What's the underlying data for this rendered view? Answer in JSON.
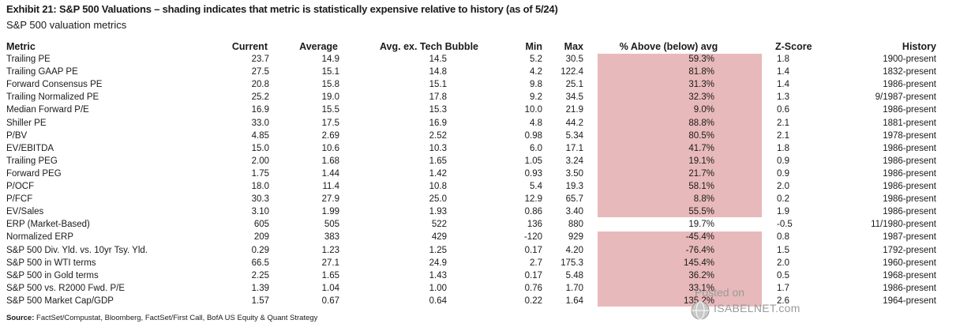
{
  "title": "Exhibit 21: S&P 500 Valuations – shading indicates that metric is statistically expensive relative to history (as of 5/24)",
  "subtitle": "S&P 500 valuation metrics",
  "source_label": "Source:",
  "source_text": " FactSet/Compustat, Bloomberg, FactSet/First Call, BofA US Equity & Quant Strategy",
  "watermark": {
    "posted": "Posted on",
    "site": "ISABELNET.com",
    "icon": "globe-icon"
  },
  "colors": {
    "shade": "#e8b9ba"
  },
  "chart_data": {
    "type": "table",
    "title": "Exhibit 21: S&P 500 Valuations – shading indicates that metric is statistically expensive relative to history (as of 5/24)",
    "subtitle": "S&P 500 valuation metrics",
    "columns": [
      "Metric",
      "Current",
      "Average",
      "Avg. ex. Tech Bubble",
      "Min",
      "Max",
      "% Above (below) avg",
      "Z-Score",
      "History"
    ],
    "rows": [
      {
        "metric": "Trailing PE",
        "current": "23.7",
        "average": "14.9",
        "avg_ex": "14.5",
        "min": "5.2",
        "max": "30.5",
        "pct": "59.3%",
        "z": "1.8",
        "history": "1900-present",
        "shaded": true
      },
      {
        "metric": "Trailing GAAP PE",
        "current": "27.5",
        "average": "15.1",
        "avg_ex": "14.8",
        "min": "4.2",
        "max": "122.4",
        "pct": "81.8%",
        "z": "1.4",
        "history": "1832-present",
        "shaded": true
      },
      {
        "metric": "Forward Consensus PE",
        "current": "20.8",
        "average": "15.8",
        "avg_ex": "15.1",
        "min": "9.8",
        "max": "25.1",
        "pct": "31.3%",
        "z": "1.4",
        "history": "1986-present",
        "shaded": true
      },
      {
        "metric": "Trailing Normalized PE",
        "current": "25.2",
        "average": "19.0",
        "avg_ex": "17.8",
        "min": "9.2",
        "max": "34.5",
        "pct": "32.3%",
        "z": "1.3",
        "history": "9/1987-present",
        "shaded": true
      },
      {
        "metric": "Median Forward P/E",
        "current": "16.9",
        "average": "15.5",
        "avg_ex": "15.3",
        "min": "10.0",
        "max": "21.9",
        "pct": "9.0%",
        "z": "0.6",
        "history": "1986-present",
        "shaded": true
      },
      {
        "metric": "Shiller PE",
        "current": "33.0",
        "average": "17.5",
        "avg_ex": "16.9",
        "min": "4.8",
        "max": "44.2",
        "pct": "88.8%",
        "z": "2.1",
        "history": "1881-present",
        "shaded": true
      },
      {
        "metric": "P/BV",
        "current": "4.85",
        "average": "2.69",
        "avg_ex": "2.52",
        "min": "0.98",
        "max": "5.34",
        "pct": "80.5%",
        "z": "2.1",
        "history": "1978-present",
        "shaded": true
      },
      {
        "metric": "EV/EBITDA",
        "current": "15.0",
        "average": "10.6",
        "avg_ex": "10.3",
        "min": "6.0",
        "max": "17.1",
        "pct": "41.7%",
        "z": "1.8",
        "history": "1986-present",
        "shaded": true
      },
      {
        "metric": "Trailing PEG",
        "current": "2.00",
        "average": "1.68",
        "avg_ex": "1.65",
        "min": "1.05",
        "max": "3.24",
        "pct": "19.1%",
        "z": "0.9",
        "history": "1986-present",
        "shaded": true
      },
      {
        "metric": "Forward PEG",
        "current": "1.75",
        "average": "1.44",
        "avg_ex": "1.42",
        "min": "0.93",
        "max": "3.50",
        "pct": "21.7%",
        "z": "0.9",
        "history": "1986-present",
        "shaded": true
      },
      {
        "metric": "P/OCF",
        "current": "18.0",
        "average": "11.4",
        "avg_ex": "10.8",
        "min": "5.4",
        "max": "19.3",
        "pct": "58.1%",
        "z": "2.0",
        "history": "1986-present",
        "shaded": true
      },
      {
        "metric": "P/FCF",
        "current": "30.3",
        "average": "27.9",
        "avg_ex": "25.0",
        "min": "12.9",
        "max": "65.7",
        "pct": "8.8%",
        "z": "0.2",
        "history": "1986-present",
        "shaded": true
      },
      {
        "metric": "EV/Sales",
        "current": "3.10",
        "average": "1.99",
        "avg_ex": "1.93",
        "min": "0.86",
        "max": "3.40",
        "pct": "55.5%",
        "z": "1.9",
        "history": "1986-present",
        "shaded": true
      },
      {
        "metric": "ERP (Market-Based)",
        "current": "605",
        "average": "505",
        "avg_ex": "522",
        "min": "136",
        "max": "880",
        "pct": "19.7%",
        "z": "-0.5",
        "history": "11/1980-present",
        "shaded": false
      },
      {
        "metric": "Normalized ERP",
        "current": "209",
        "average": "383",
        "avg_ex": "429",
        "min": "-120",
        "max": "929",
        "pct": "-45.4%",
        "z": "0.8",
        "history": "1987-present",
        "shaded": true
      },
      {
        "metric": "S&P 500 Div. Yld. vs. 10yr Tsy. Yld.",
        "current": "0.29",
        "average": "1.23",
        "avg_ex": "1.25",
        "min": "0.17",
        "max": "4.20",
        "pct": "-76.4%",
        "z": "1.5",
        "history": "1792-present",
        "shaded": true
      },
      {
        "metric": "S&P 500 in WTI terms",
        "current": "66.5",
        "average": "27.1",
        "avg_ex": "24.9",
        "min": "2.7",
        "max": "175.3",
        "pct": "145.4%",
        "z": "2.0",
        "history": "1960-present",
        "shaded": true
      },
      {
        "metric": "S&P 500 in Gold terms",
        "current": "2.25",
        "average": "1.65",
        "avg_ex": "1.43",
        "min": "0.17",
        "max": "5.48",
        "pct": "36.2%",
        "z": "0.5",
        "history": "1968-present",
        "shaded": true
      },
      {
        "metric": "S&P 500 vs. R2000 Fwd. P/E",
        "current": "1.39",
        "average": "1.04",
        "avg_ex": "1.00",
        "min": "0.76",
        "max": "1.70",
        "pct": "33.1%",
        "z": "1.7",
        "history": "1986-present",
        "shaded": true
      },
      {
        "metric": "S&P 500 Market Cap/GDP",
        "current": "1.57",
        "average": "0.67",
        "avg_ex": "0.64",
        "min": "0.22",
        "max": "1.64",
        "pct": "135.2%",
        "z": "2.6",
        "history": "1964-present",
        "shaded": true
      }
    ]
  }
}
